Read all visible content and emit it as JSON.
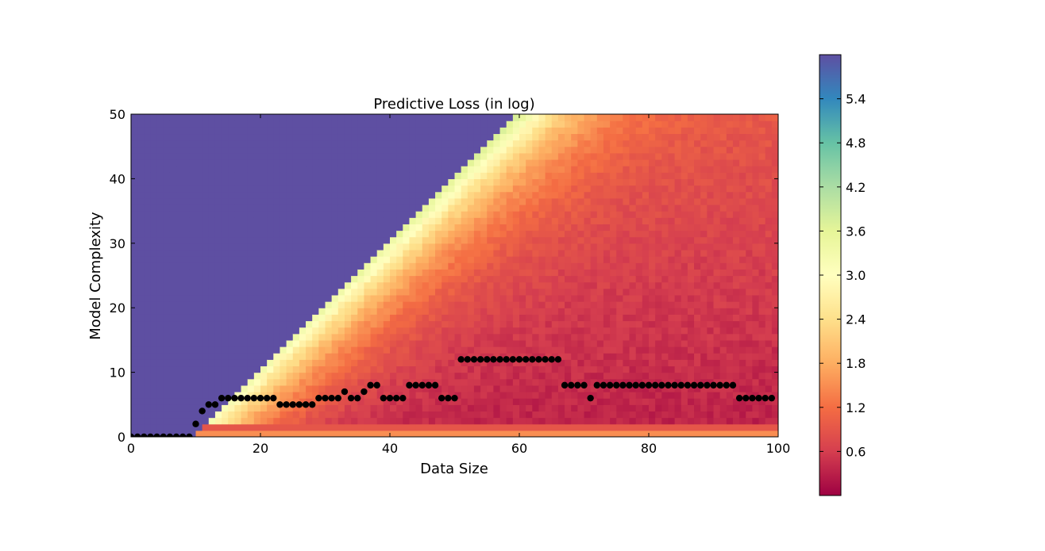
{
  "chart_data": {
    "type": "heatmap",
    "title": "Predictive Loss (in log)",
    "xlabel": "Data Size",
    "ylabel": "Model Complexity",
    "xlim": [
      0,
      100
    ],
    "ylim": [
      0,
      50
    ],
    "x_ticks": [
      0,
      20,
      40,
      60,
      80,
      100
    ],
    "y_ticks": [
      0,
      10,
      20,
      30,
      40,
      50
    ],
    "colorbar": {
      "colormap": "Spectral_r",
      "range": [
        0,
        6.0
      ],
      "ticks": [
        0.6,
        1.2,
        1.8,
        2.4,
        3.0,
        3.6,
        4.2,
        4.8,
        5.4
      ],
      "tick_labels": [
        "0.6",
        "1.2",
        "1.8",
        "2.4",
        "3.0",
        "3.6",
        "4.2",
        "4.8",
        "5.4"
      ]
    },
    "heatmap_description": {
      "saturated_region": "complexity greater than roughly data size minus 10, value at max (~6.0)",
      "transition_band_value": 2.8,
      "low_region_value": 0.3,
      "bottom_row_value": 1.5
    },
    "series": [
      {
        "type": "scatter",
        "marker_color": "#000000",
        "x": [
          0,
          1,
          2,
          3,
          4,
          5,
          6,
          7,
          8,
          9,
          10,
          11,
          12,
          13,
          14,
          15,
          16,
          17,
          18,
          19,
          20,
          21,
          22,
          23,
          24,
          25,
          26,
          27,
          28,
          29,
          30,
          31,
          32,
          33,
          34,
          35,
          36,
          37,
          38,
          39,
          40,
          41,
          42,
          43,
          44,
          45,
          46,
          47,
          48,
          49,
          50,
          51,
          52,
          53,
          54,
          55,
          56,
          57,
          58,
          59,
          60,
          61,
          62,
          63,
          64,
          65,
          66,
          67,
          68,
          69,
          70,
          71,
          72,
          73,
          74,
          75,
          76,
          77,
          78,
          79,
          80,
          81,
          82,
          83,
          84,
          85,
          86,
          87,
          88,
          89,
          90,
          91,
          92,
          93,
          94,
          95,
          96,
          97,
          98,
          99
        ],
        "y": [
          0,
          0,
          0,
          0,
          0,
          0,
          0,
          0,
          0,
          0,
          2,
          4,
          5,
          5,
          6,
          6,
          6,
          6,
          6,
          6,
          6,
          6,
          6,
          5,
          5,
          5,
          5,
          5,
          5,
          6,
          6,
          6,
          6,
          7,
          6,
          6,
          7,
          8,
          8,
          6,
          6,
          6,
          6,
          8,
          8,
          8,
          8,
          8,
          6,
          6,
          6,
          12,
          12,
          12,
          12,
          12,
          12,
          12,
          12,
          12,
          12,
          12,
          12,
          12,
          12,
          12,
          12,
          8,
          8,
          8,
          8,
          6,
          8,
          8,
          8,
          8,
          8,
          8,
          8,
          8,
          8,
          8,
          8,
          8,
          8,
          8,
          8,
          8,
          8,
          8,
          8,
          8,
          8,
          8,
          6,
          6,
          6,
          6,
          6,
          6
        ]
      }
    ]
  }
}
